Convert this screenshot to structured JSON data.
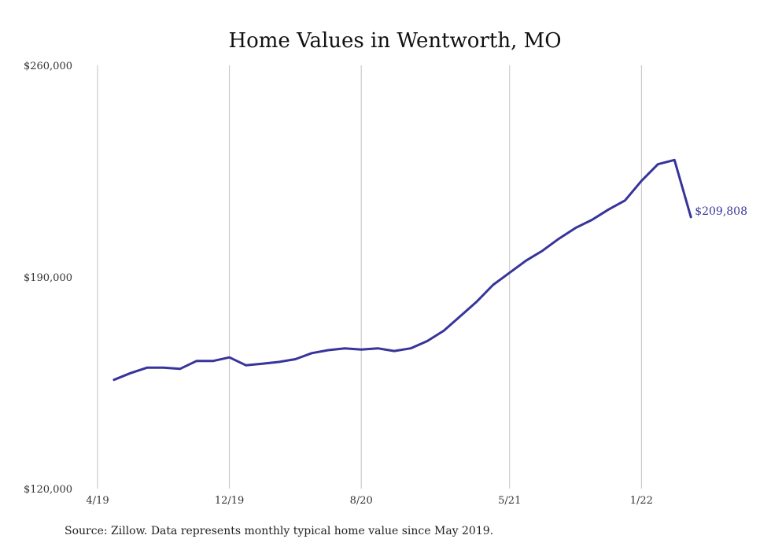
{
  "chart_data": {
    "type": "line",
    "title": "Home Values in Wentworth, MO",
    "xlabel": "",
    "ylabel": "",
    "ylim": [
      120000,
      260000
    ],
    "y_ticks": [
      "$120,000",
      "$190,000",
      "$260,000"
    ],
    "y_tick_values": [
      120000,
      190000,
      260000
    ],
    "x_ticks": [
      "4/19",
      "12/19",
      "8/20",
      "5/21",
      "1/22"
    ],
    "x_tick_months": [
      "2019-04",
      "2019-12",
      "2020-08",
      "2021-05",
      "2022-01"
    ],
    "grid": "vertical",
    "series": [
      {
        "x": [
          "2019-05",
          "2019-06",
          "2019-07",
          "2019-08",
          "2019-09",
          "2019-10",
          "2019-11",
          "2019-12",
          "2020-01",
          "2020-02",
          "2020-03",
          "2020-04",
          "2020-05",
          "2020-06",
          "2020-07",
          "2020-08",
          "2020-09",
          "2020-10",
          "2020-11",
          "2020-12",
          "2021-01",
          "2021-02",
          "2021-03",
          "2021-04",
          "2021-05",
          "2021-06",
          "2021-07",
          "2021-08",
          "2021-09",
          "2021-10",
          "2021-11",
          "2021-12",
          "2022-01",
          "2022-02",
          "2022-03",
          "2022-04"
        ],
        "values": [
          156000,
          158200,
          160000,
          160000,
          159600,
          162200,
          162200,
          163400,
          160800,
          161300,
          161900,
          162800,
          164800,
          165800,
          166400,
          166000,
          166400,
          165500,
          166400,
          168800,
          172200,
          177000,
          181800,
          187400,
          191400,
          195400,
          198700,
          202700,
          206200,
          208900,
          212300,
          215300,
          221800,
          227300,
          228700,
          209808
        ]
      }
    ],
    "end_label": "$209,808",
    "colors": {
      "line": "#37349a",
      "grid": "#c2c2c2",
      "background": "#ffffff"
    },
    "source": "Source: Zillow. Data represents monthly typical home value since May 2019."
  }
}
